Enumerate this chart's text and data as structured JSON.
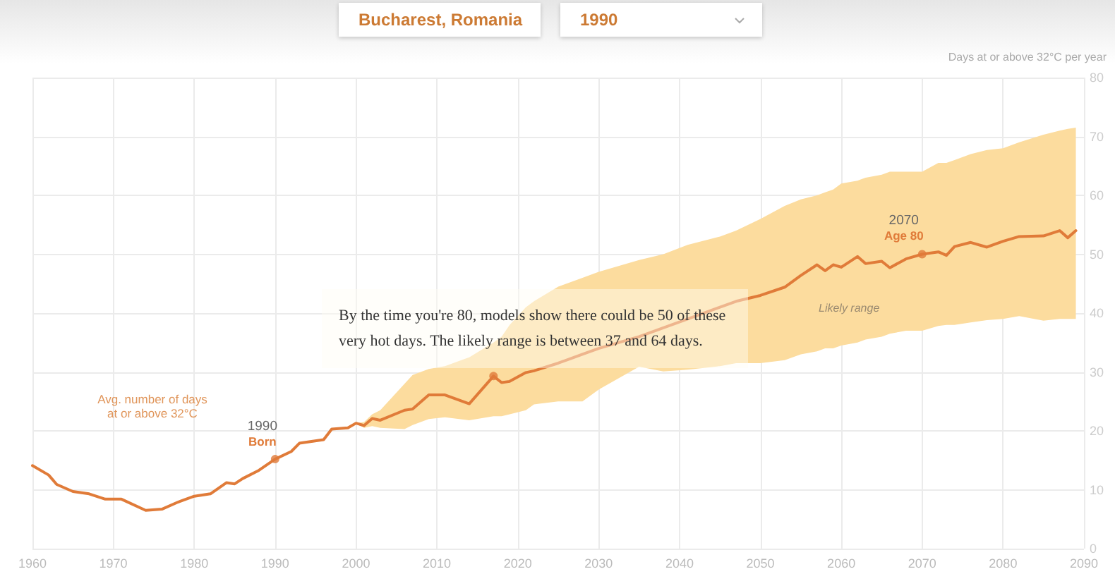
{
  "chart_data": {
    "type": "line",
    "ylabel": "Days at or above 32°C per year",
    "xlim": [
      1960,
      2090
    ],
    "ylim": [
      0,
      80
    ],
    "xticks": [
      1960,
      1970,
      1980,
      1990,
      2000,
      2010,
      2020,
      2030,
      2040,
      2050,
      2060,
      2070,
      2080,
      2090
    ],
    "yticks": [
      0,
      10,
      20,
      30,
      40,
      50,
      60,
      70,
      80
    ],
    "grid": true,
    "marker": "none",
    "x": [
      1960,
      1962,
      1963,
      1965,
      1967,
      1969,
      1971,
      1974,
      1976,
      1978,
      1980,
      1982,
      1984,
      1985,
      1986,
      1988,
      1990,
      1992,
      1993,
      1996,
      1997,
      1999,
      2000,
      2001,
      2002,
      2003,
      2006,
      2007,
      2009,
      2011,
      2014,
      2017,
      2018,
      2019,
      2021,
      2022,
      2025,
      2028,
      2030,
      2035,
      2038,
      2041,
      2045,
      2047,
      2050,
      2053,
      2055,
      2057,
      2058,
      2059,
      2060,
      2062,
      2063,
      2065,
      2066,
      2068,
      2070,
      2072,
      2073,
      2074,
      2076,
      2078,
      2080,
      2082,
      2085,
      2087,
      2088,
      2089
    ],
    "series": [
      {
        "color": "#e07b39",
        "values": [
          14.1,
          12.5,
          10.9,
          9.7,
          9.3,
          8.4,
          8.4,
          6.5,
          6.7,
          7.9,
          8.9,
          9.3,
          11.2,
          11.0,
          11.9,
          13.3,
          15.2,
          16.5,
          17.9,
          18.5,
          20.3,
          20.5,
          21.3,
          20.9,
          22.1,
          21.8,
          23.5,
          23.7,
          26.1,
          26.1,
          24.6,
          29.3,
          28.2,
          28.4,
          29.9,
          30.2,
          31.5,
          33,
          34,
          36,
          37.5,
          39,
          41,
          42,
          43,
          44.4,
          46.4,
          48.2,
          47.2,
          48.2,
          47.8,
          49.6,
          48.4,
          48.8,
          47.7,
          49.2,
          50,
          50.4,
          49.8,
          51.3,
          52,
          51.2,
          52.2,
          53,
          53.1,
          54,
          52.8,
          54
        ],
        "lower": [
          null,
          null,
          null,
          null,
          null,
          null,
          null,
          null,
          null,
          null,
          null,
          null,
          null,
          null,
          null,
          null,
          null,
          null,
          null,
          null,
          null,
          null,
          21.3,
          20.5,
          20.8,
          20.5,
          20.3,
          21,
          22,
          22.3,
          21.8,
          22.5,
          22.5,
          22.8,
          23.5,
          24.5,
          25,
          25,
          27,
          30.9,
          30.1,
          30.4,
          31,
          31.5,
          31.5,
          32,
          33,
          33.5,
          34,
          34,
          34.5,
          35,
          35.5,
          36,
          36.5,
          37,
          37,
          37.8,
          38,
          38,
          38.4,
          38.8,
          39,
          39.5,
          38.7,
          39,
          39,
          39
        ],
        "upper": [
          null,
          null,
          null,
          null,
          null,
          null,
          null,
          null,
          null,
          null,
          null,
          null,
          null,
          null,
          null,
          null,
          null,
          null,
          null,
          null,
          null,
          null,
          21.3,
          21.5,
          22.8,
          23.5,
          28,
          29.5,
          30.5,
          31,
          32.5,
          35,
          36,
          38,
          41,
          42,
          44.5,
          46,
          47,
          49,
          50,
          51.6,
          53,
          54,
          56,
          58.2,
          59.3,
          60,
          60.5,
          61,
          62,
          62.5,
          63,
          63.5,
          64,
          64,
          64,
          65.5,
          65.5,
          66,
          67,
          67.7,
          68,
          69,
          70.3,
          71,
          71.3,
          71.5
        ]
      },
      {
        "type": "scatter",
        "marker": "circle",
        "color": "#e07b39",
        "x": [
          1990,
          2017,
          2070
        ],
        "values": [
          15.2,
          29.3,
          50
        ]
      }
    ],
    "annotations": [
      "Bucharest, Romania",
      "1990",
      "Avg. number of days\nat or above 32°C",
      {
        "text": "1990\nBorn",
        "x": 1990,
        "y": 15.2
      },
      {
        "text": "2070\nAge 80",
        "x": 2070,
        "y": 50
      },
      "Likely range",
      "By the time you're 80, models show there could be 50 of these very hot days. The likely range is between 37 and 64 days."
    ]
  }
}
